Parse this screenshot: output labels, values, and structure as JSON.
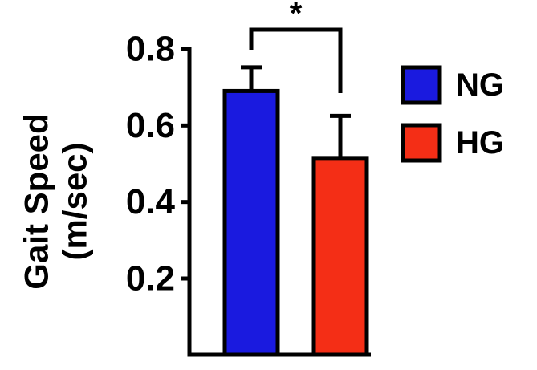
{
  "chart_data": {
    "type": "bar",
    "categories": [
      "NG",
      "HG"
    ],
    "values": [
      0.69,
      0.515
    ],
    "errors": [
      0.062,
      0.11
    ],
    "colors": [
      "#1a1adf",
      "#f42e16"
    ],
    "ylabel_lines": [
      "Gait Speed",
      "(m/sec)"
    ],
    "ylim": [
      0.0,
      0.8
    ],
    "yticks": [
      0.2,
      0.4,
      0.6,
      0.8
    ],
    "ytick_labels": [
      "0.2",
      "0.4",
      "0.6",
      "0.8"
    ],
    "legend_placement": "right",
    "legend": [
      {
        "label": "NG",
        "color": "#1a1adf"
      },
      {
        "label": "HG",
        "color": "#f42e16"
      }
    ],
    "significance": {
      "between": [
        "NG",
        "HG"
      ],
      "label": "*"
    },
    "grid": false
  }
}
